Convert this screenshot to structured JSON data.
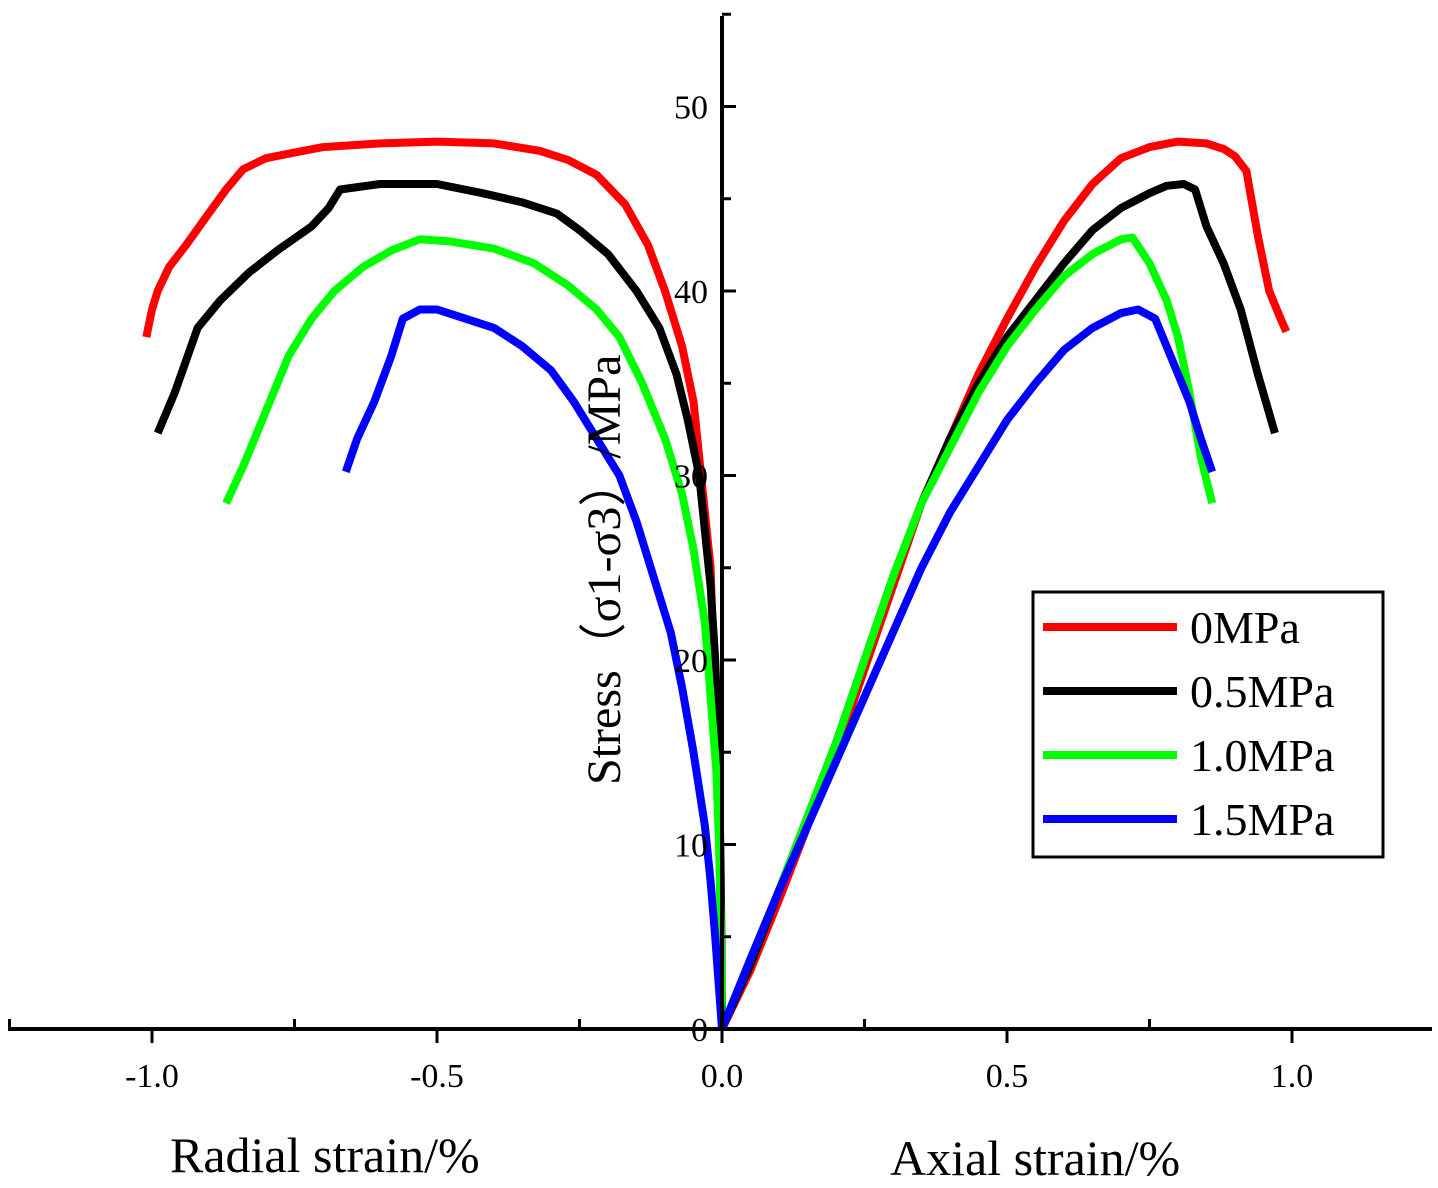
{
  "chart_data": {
    "type": "line",
    "title": "",
    "xlabel_left": "Radial strain/%",
    "xlabel_right": "Axial strain/%",
    "ylabel": "Stress（σ1-σ3）/MPa",
    "xlim": [
      -1.25,
      1.25
    ],
    "ylim": [
      0,
      55
    ],
    "x_ticks": [
      "-1.0",
      "-0.5",
      "0.0",
      "0.5",
      "1.0"
    ],
    "x_tick_values": [
      -1.0,
      -0.5,
      0.0,
      0.5,
      1.0
    ],
    "y_ticks": [
      "0",
      "10",
      "20",
      "30",
      "40",
      "50"
    ],
    "y_tick_values": [
      0,
      10,
      20,
      30,
      40,
      50
    ],
    "legend_position": "center-right",
    "series": [
      {
        "name": "0MPa",
        "color": "#ff0000",
        "radial": [
          [
            -1.01,
            37.5
          ],
          [
            -1.0,
            39
          ],
          [
            -0.99,
            40
          ],
          [
            -0.97,
            41.3
          ],
          [
            -0.94,
            42.5
          ],
          [
            -0.91,
            43.8
          ],
          [
            -0.87,
            45.5
          ],
          [
            -0.84,
            46.6
          ],
          [
            -0.8,
            47.2
          ],
          [
            -0.75,
            47.5
          ],
          [
            -0.7,
            47.8
          ],
          [
            -0.6,
            48.0
          ],
          [
            -0.5,
            48.1
          ],
          [
            -0.4,
            48.0
          ],
          [
            -0.32,
            47.6
          ],
          [
            -0.27,
            47.1
          ],
          [
            -0.22,
            46.3
          ],
          [
            -0.17,
            44.7
          ],
          [
            -0.13,
            42.5
          ],
          [
            -0.1,
            40.0
          ],
          [
            -0.07,
            37.0
          ],
          [
            -0.05,
            34.0
          ],
          [
            -0.04,
            31.0
          ],
          [
            -0.03,
            28.0
          ],
          [
            -0.02,
            25.0
          ],
          [
            -0.015,
            20.0
          ],
          [
            -0.008,
            15.0
          ],
          [
            -0.004,
            10.0
          ],
          [
            -0.002,
            5.0
          ],
          [
            0.0,
            0.0
          ]
        ],
        "axial": [
          [
            0.0,
            0.0
          ],
          [
            0.05,
            3.2
          ],
          [
            0.1,
            7.0
          ],
          [
            0.15,
            11.0
          ],
          [
            0.2,
            15.0
          ],
          [
            0.25,
            19.5
          ],
          [
            0.3,
            24.0
          ],
          [
            0.35,
            28.5
          ],
          [
            0.4,
            32.0
          ],
          [
            0.45,
            35.5
          ],
          [
            0.5,
            38.5
          ],
          [
            0.55,
            41.3
          ],
          [
            0.6,
            43.8
          ],
          [
            0.65,
            45.8
          ],
          [
            0.7,
            47.2
          ],
          [
            0.75,
            47.8
          ],
          [
            0.8,
            48.1
          ],
          [
            0.85,
            48.0
          ],
          [
            0.88,
            47.7
          ],
          [
            0.9,
            47.3
          ],
          [
            0.92,
            46.5
          ],
          [
            0.94,
            43.0
          ],
          [
            0.96,
            40.0
          ],
          [
            0.98,
            38.5
          ],
          [
            0.99,
            37.8
          ]
        ]
      },
      {
        "name": "0.5MPa",
        "color": "#000000",
        "radial": [
          [
            -0.99,
            32.3
          ],
          [
            -0.96,
            34.5
          ],
          [
            -0.92,
            38.0
          ],
          [
            -0.88,
            39.5
          ],
          [
            -0.83,
            41.0
          ],
          [
            -0.78,
            42.2
          ],
          [
            -0.72,
            43.5
          ],
          [
            -0.69,
            44.5
          ],
          [
            -0.67,
            45.5
          ],
          [
            -0.6,
            45.8
          ],
          [
            -0.5,
            45.8
          ],
          [
            -0.42,
            45.3
          ],
          [
            -0.35,
            44.8
          ],
          [
            -0.29,
            44.2
          ],
          [
            -0.25,
            43.3
          ],
          [
            -0.2,
            42.0
          ],
          [
            -0.15,
            40.0
          ],
          [
            -0.11,
            38.0
          ],
          [
            -0.08,
            35.5
          ],
          [
            -0.06,
            33.0
          ],
          [
            -0.04,
            30.0
          ],
          [
            -0.03,
            27.0
          ],
          [
            -0.02,
            24.0
          ],
          [
            -0.012,
            20.0
          ],
          [
            -0.006,
            15.0
          ],
          [
            -0.003,
            10.0
          ],
          [
            -0.001,
            5.0
          ],
          [
            0.0,
            0.0
          ]
        ],
        "axial": [
          [
            0.0,
            0.0
          ],
          [
            0.05,
            3.5
          ],
          [
            0.1,
            7.5
          ],
          [
            0.15,
            11.5
          ],
          [
            0.2,
            15.5
          ],
          [
            0.25,
            20.0
          ],
          [
            0.3,
            24.5
          ],
          [
            0.35,
            28.5
          ],
          [
            0.4,
            32.0
          ],
          [
            0.45,
            35.0
          ],
          [
            0.5,
            37.5
          ],
          [
            0.55,
            39.5
          ],
          [
            0.6,
            41.5
          ],
          [
            0.65,
            43.3
          ],
          [
            0.7,
            44.5
          ],
          [
            0.75,
            45.3
          ],
          [
            0.78,
            45.7
          ],
          [
            0.81,
            45.8
          ],
          [
            0.83,
            45.5
          ],
          [
            0.85,
            43.5
          ],
          [
            0.88,
            41.5
          ],
          [
            0.91,
            39.0
          ],
          [
            0.94,
            35.5
          ],
          [
            0.97,
            32.3
          ]
        ]
      },
      {
        "name": "1.0MPa",
        "color": "#00ff00",
        "radial": [
          [
            -0.87,
            28.5
          ],
          [
            -0.84,
            30.5
          ],
          [
            -0.8,
            33.5
          ],
          [
            -0.76,
            36.5
          ],
          [
            -0.72,
            38.5
          ],
          [
            -0.68,
            40.0
          ],
          [
            -0.63,
            41.3
          ],
          [
            -0.58,
            42.2
          ],
          [
            -0.53,
            42.8
          ],
          [
            -0.48,
            42.7
          ],
          [
            -0.4,
            42.3
          ],
          [
            -0.33,
            41.5
          ],
          [
            -0.27,
            40.3
          ],
          [
            -0.22,
            39.0
          ],
          [
            -0.18,
            37.5
          ],
          [
            -0.14,
            35.0
          ],
          [
            -0.1,
            32.0
          ],
          [
            -0.07,
            29.0
          ],
          [
            -0.05,
            26.0
          ],
          [
            -0.03,
            22.0
          ],
          [
            -0.02,
            18.0
          ],
          [
            -0.01,
            14.0
          ],
          [
            -0.005,
            10.0
          ],
          [
            -0.002,
            5.0
          ],
          [
            0.0,
            0.0
          ]
        ],
        "axial": [
          [
            0.0,
            0.0
          ],
          [
            0.05,
            3.8
          ],
          [
            0.1,
            7.5
          ],
          [
            0.15,
            11.5
          ],
          [
            0.2,
            15.5
          ],
          [
            0.25,
            20.0
          ],
          [
            0.3,
            24.5
          ],
          [
            0.35,
            28.5
          ],
          [
            0.4,
            31.5
          ],
          [
            0.45,
            34.5
          ],
          [
            0.5,
            37.0
          ],
          [
            0.55,
            39.0
          ],
          [
            0.6,
            40.8
          ],
          [
            0.65,
            42.0
          ],
          [
            0.7,
            42.8
          ],
          [
            0.72,
            42.9
          ],
          [
            0.75,
            41.5
          ],
          [
            0.78,
            39.5
          ],
          [
            0.8,
            37.5
          ],
          [
            0.82,
            34.5
          ],
          [
            0.84,
            31.0
          ],
          [
            0.86,
            28.5
          ]
        ]
      },
      {
        "name": "1.5MPa",
        "color": "#0000ff",
        "radial": [
          [
            -0.66,
            30.2
          ],
          [
            -0.64,
            32.0
          ],
          [
            -0.61,
            34.0
          ],
          [
            -0.58,
            36.5
          ],
          [
            -0.56,
            38.5
          ],
          [
            -0.53,
            39.0
          ],
          [
            -0.5,
            39.0
          ],
          [
            -0.45,
            38.5
          ],
          [
            -0.4,
            38.0
          ],
          [
            -0.35,
            37.0
          ],
          [
            -0.3,
            35.7
          ],
          [
            -0.26,
            34.0
          ],
          [
            -0.22,
            32.0
          ],
          [
            -0.18,
            30.0
          ],
          [
            -0.15,
            27.5
          ],
          [
            -0.12,
            24.5
          ],
          [
            -0.09,
            21.5
          ],
          [
            -0.07,
            18.5
          ],
          [
            -0.05,
            15.0
          ],
          [
            -0.03,
            11.0
          ],
          [
            -0.02,
            8.0
          ],
          [
            -0.012,
            5.0
          ],
          [
            -0.006,
            2.5
          ],
          [
            0.0,
            0.0
          ]
        ],
        "axial": [
          [
            0.0,
            0.0
          ],
          [
            0.05,
            3.8
          ],
          [
            0.1,
            7.5
          ],
          [
            0.15,
            11.0
          ],
          [
            0.2,
            14.5
          ],
          [
            0.25,
            18.0
          ],
          [
            0.3,
            21.5
          ],
          [
            0.35,
            25.0
          ],
          [
            0.4,
            28.0
          ],
          [
            0.45,
            30.5
          ],
          [
            0.5,
            33.0
          ],
          [
            0.55,
            35.0
          ],
          [
            0.6,
            36.8
          ],
          [
            0.65,
            38.0
          ],
          [
            0.7,
            38.8
          ],
          [
            0.73,
            39.0
          ],
          [
            0.76,
            38.5
          ],
          [
            0.78,
            37.0
          ],
          [
            0.8,
            35.5
          ],
          [
            0.82,
            34.0
          ],
          [
            0.84,
            32.0
          ],
          [
            0.86,
            30.2
          ]
        ]
      }
    ]
  }
}
